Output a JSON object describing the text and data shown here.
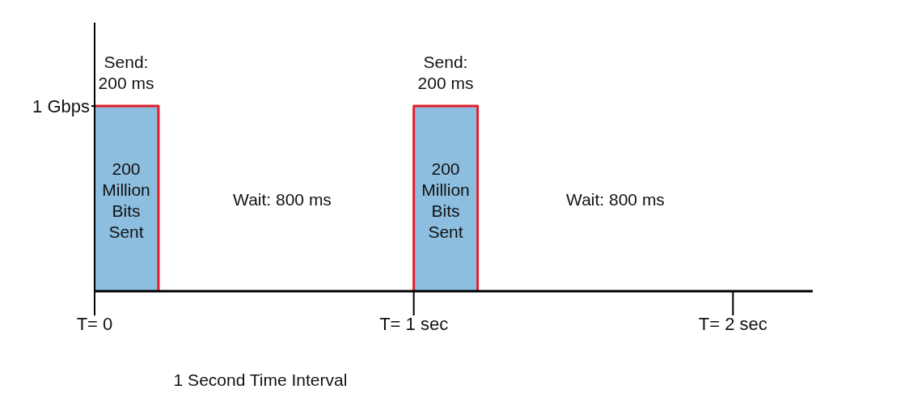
{
  "chart_data": {
    "type": "area",
    "x": [
      0,
      0,
      0.2,
      0.2,
      1,
      1,
      1.2,
      1.2,
      2.25
    ],
    "series": [
      {
        "color": "#8dbddf",
        "values": [
          0,
          1,
          1,
          0,
          0,
          1,
          1,
          0,
          0
        ]
      },
      {
        "type": "line",
        "color": "#e3202a",
        "x": [
          0,
          0.2,
          0.2,
          0.6,
          1,
          1,
          1.2,
          1.2
        ],
        "values": [
          1,
          1,
          0,
          null,
          0,
          1,
          1,
          0
        ]
      }
    ],
    "xlim": [
      0,
      2.25
    ],
    "xticks": [
      {
        "value": 0,
        "label": "T= 0"
      },
      {
        "value": 1,
        "label": "T= 1 sec"
      },
      {
        "value": 2,
        "label": "T= 2 sec"
      }
    ],
    "ylim": [
      0,
      1.45
    ],
    "yticks": [
      {
        "value": 1,
        "label": "1 Gbps"
      }
    ],
    "annotations": [
      "Send:\n200 ms",
      "200\nMillion\nBits\nSent",
      "Wait: 800 ms",
      "Send:\n200 ms",
      "200\nMillion\nBits\nSent",
      "Wait: 800 ms",
      "1 Second Time Interval"
    ]
  }
}
